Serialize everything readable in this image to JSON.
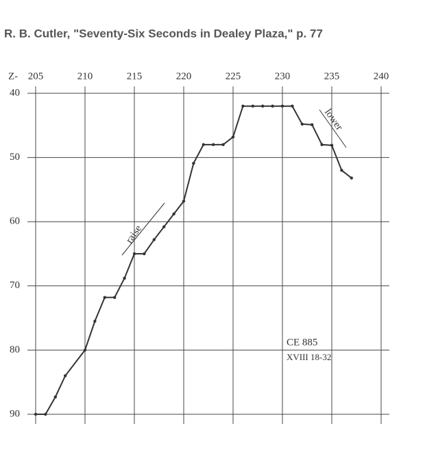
{
  "chart_data": {
    "type": "line",
    "title": "R. B. Cutler, \"Seventy-Six Seconds in Dealey Plaza,\" p. 77",
    "x_label": "Z-",
    "x": [
      205,
      206,
      207,
      208,
      210,
      211,
      212,
      213,
      214,
      215,
      216,
      217,
      218,
      219,
      220,
      221,
      222,
      223,
      224,
      225,
      226,
      227,
      228,
      229,
      230,
      231,
      232,
      233,
      234,
      235,
      236,
      237
    ],
    "series": [
      {
        "color": "#333333",
        "values": [
          90,
          90,
          87.3,
          84,
          80,
          75.5,
          71.8,
          71.8,
          68.8,
          65,
          65,
          62.8,
          60.8,
          58.8,
          56.8,
          50.9,
          48,
          48,
          48,
          46.8,
          42,
          42,
          42,
          42,
          42,
          42,
          44.8,
          44.9,
          48,
          48.1,
          52,
          53.2
        ]
      }
    ],
    "xlim": [
      205,
      240
    ],
    "xticks": [
      205,
      210,
      215,
      220,
      225,
      230,
      235,
      240
    ],
    "ylim": [
      40,
      90
    ],
    "yticks": [
      40,
      50,
      60,
      70,
      80,
      90
    ],
    "y_inverted": true,
    "grid": true,
    "annotations": [
      "raise",
      "lower",
      "CE 885",
      "XVIII 18-32"
    ]
  }
}
